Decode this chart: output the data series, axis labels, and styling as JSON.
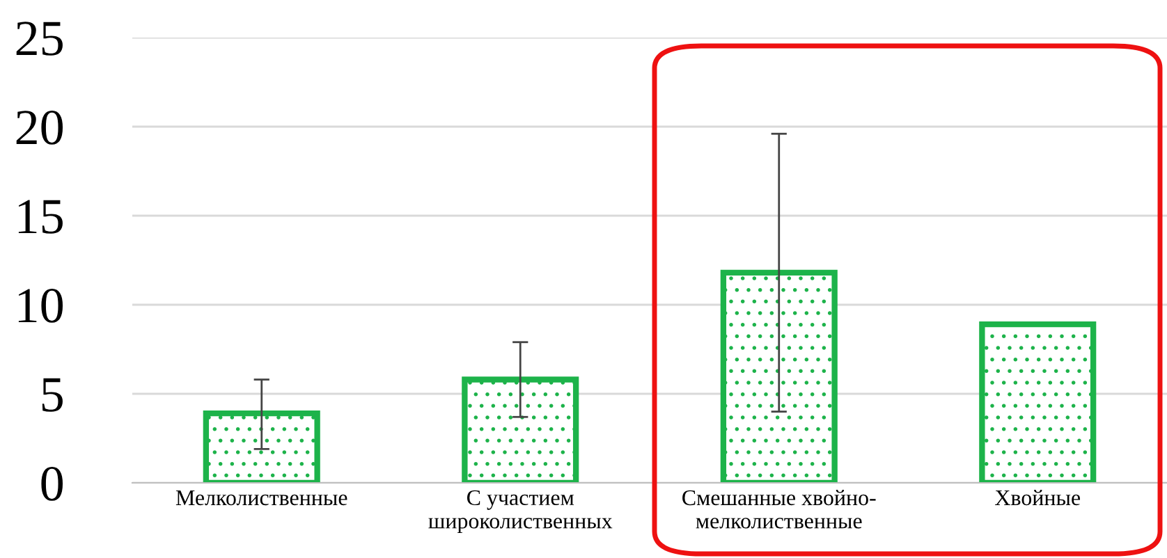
{
  "chart_data": {
    "type": "bar",
    "categories": [
      "Мелколиственные",
      "С участием\nшироколиственных",
      "Смешанные хвойно-\nмелколиственные",
      "Хвойные"
    ],
    "values": [
      3.9,
      5.8,
      11.8,
      8.9
    ],
    "errors": [
      [
        1.9,
        5.8
      ],
      [
        3.7,
        7.9
      ],
      [
        4.0,
        19.6
      ],
      null
    ],
    "color": "#1db34a",
    "ylim": [
      0,
      25
    ],
    "yticks": [
      0,
      5,
      10,
      15,
      20,
      25
    ],
    "grid": "y",
    "legend": false
  }
}
